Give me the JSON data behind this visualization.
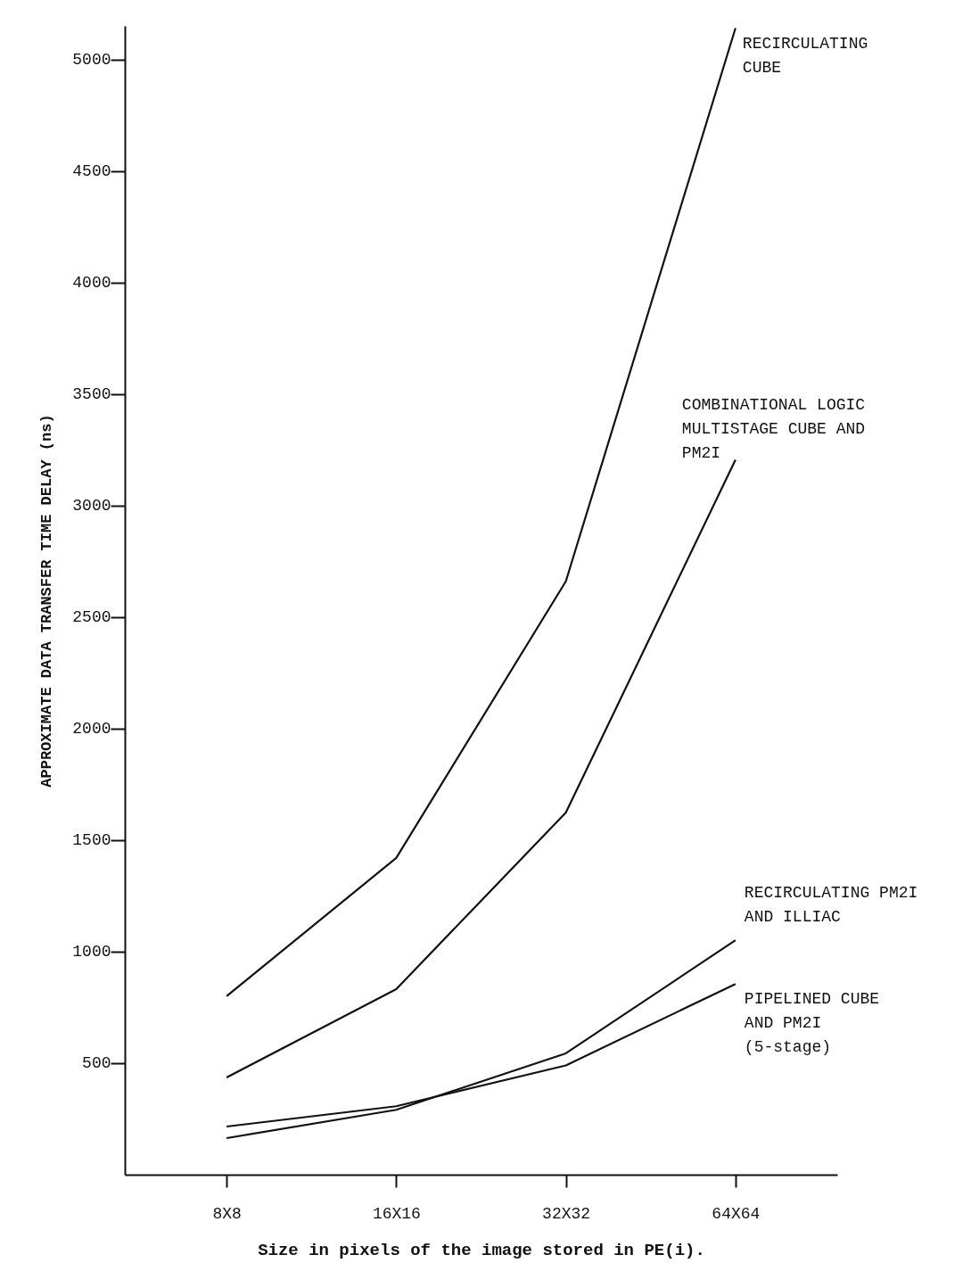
{
  "chart_data": {
    "type": "line",
    "xlabel": "Size in pixels of the image stored in PE(i).",
    "ylabel": "APPROXIMATE DATA TRANSFER TIME DELAY (ns)",
    "categories": [
      "8X8",
      "16X16",
      "32X32",
      "64X64"
    ],
    "series": [
      {
        "color": "#111111",
        "values": [
          800,
          1420,
          2660,
          5140
        ]
      },
      {
        "color": "#111111",
        "values": [
          436,
          832,
          1623,
          3205
        ]
      },
      {
        "color": "#111111",
        "values": [
          164,
          291,
          544,
          1051
        ]
      },
      {
        "color": "#111111",
        "values": [
          216,
          307,
          490,
          855
        ]
      }
    ],
    "ylim": [
      0,
      5150
    ],
    "yticks": [
      500,
      1000,
      1500,
      2000,
      2500,
      3000,
      3500,
      4000,
      4500,
      5000
    ],
    "grid": false,
    "legend": false,
    "marker": "none",
    "line_style": "solid",
    "annotations": [
      "RECIRCULATING\nCUBE",
      "COMBINATIONAL LOGIC\nMULTISTAGE CUBE AND\nPM2I",
      "RECIRCULATING PM2I\nAND ILLIAC",
      "PIPELINED CUBE\nAND PM2I\n(5-stage)"
    ]
  }
}
